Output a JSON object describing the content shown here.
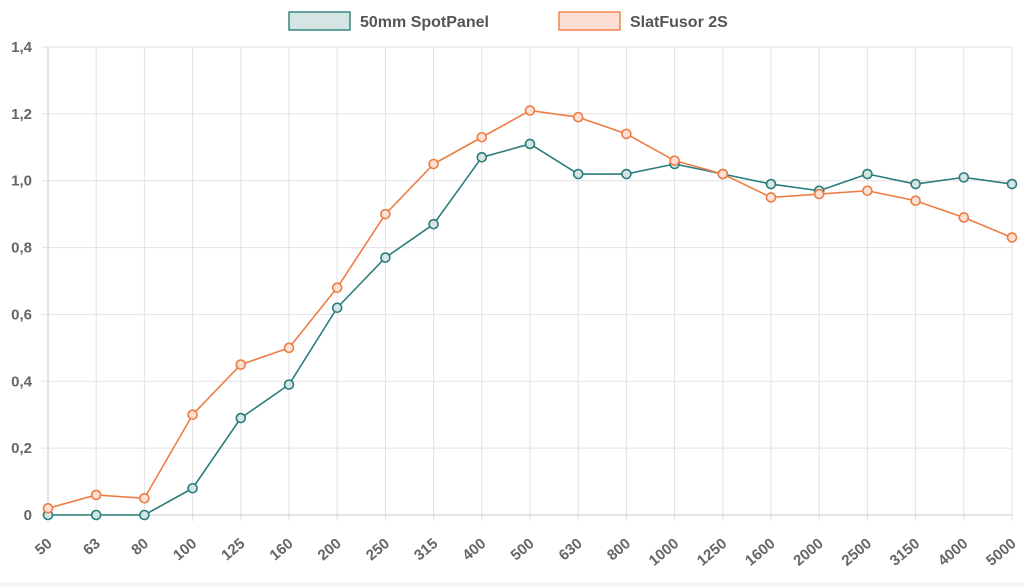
{
  "chart_data": {
    "type": "line",
    "title": "",
    "xlabel": "",
    "ylabel": "",
    "categories": [
      "50",
      "63",
      "80",
      "100",
      "125",
      "160",
      "200",
      "250",
      "315",
      "400",
      "500",
      "630",
      "800",
      "1000",
      "1250",
      "1600",
      "2000",
      "2500",
      "3150",
      "4000",
      "5000"
    ],
    "ylim": [
      0,
      1.4
    ],
    "yticks": [
      "0",
      "0,2",
      "0,4",
      "0,6",
      "0,8",
      "1,0",
      "1,2",
      "1,4"
    ],
    "grid": true,
    "legend_position": "top-center",
    "series": [
      {
        "name": "50mm SpotPanel",
        "color": "#2a7d7b",
        "fill": "#d5e5e4",
        "values": [
          0,
          0,
          0,
          0.08,
          0.29,
          0.39,
          0.62,
          0.77,
          0.87,
          1.07,
          1.11,
          1.02,
          1.02,
          1.05,
          1.02,
          0.99,
          0.97,
          1.02,
          0.99,
          1.01,
          0.99
        ]
      },
      {
        "name": "SlatFusor 2S",
        "color": "#ee7d45",
        "fill": "#fde0d3",
        "values": [
          0.02,
          0.06,
          0.05,
          0.3,
          0.45,
          0.5,
          0.68,
          0.9,
          1.05,
          1.13,
          1.21,
          1.19,
          1.14,
          1.06,
          1.02,
          0.95,
          0.96,
          0.97,
          0.94,
          0.89,
          0.83
        ]
      }
    ]
  }
}
